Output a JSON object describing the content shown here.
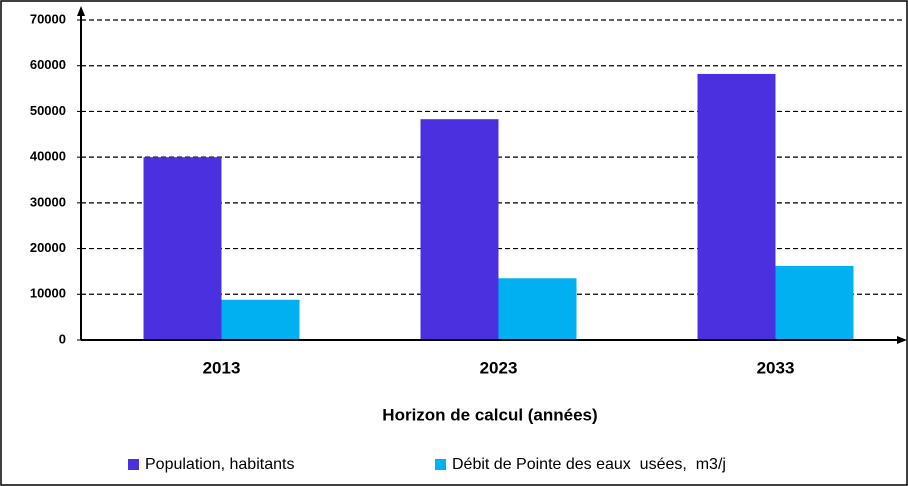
{
  "chart_data": {
    "type": "bar",
    "categories": [
      "2013",
      "2023",
      "2033"
    ],
    "series": [
      {
        "name": "Population, habitants",
        "color": "#4b30df",
        "values": [
          40000,
          48300,
          58200
        ]
      },
      {
        "name": "Débit de Pointe des eaux  usées,  m3/j",
        "color": "#00b0f0",
        "values": [
          8800,
          13500,
          16200
        ]
      }
    ],
    "x_label": "Horizon de calcul (années)",
    "ylim": [
      0,
      70000
    ],
    "yticks": [
      0,
      10000,
      20000,
      30000,
      40000,
      50000,
      60000,
      70000
    ],
    "grid": true,
    "legend": "bottom"
  }
}
